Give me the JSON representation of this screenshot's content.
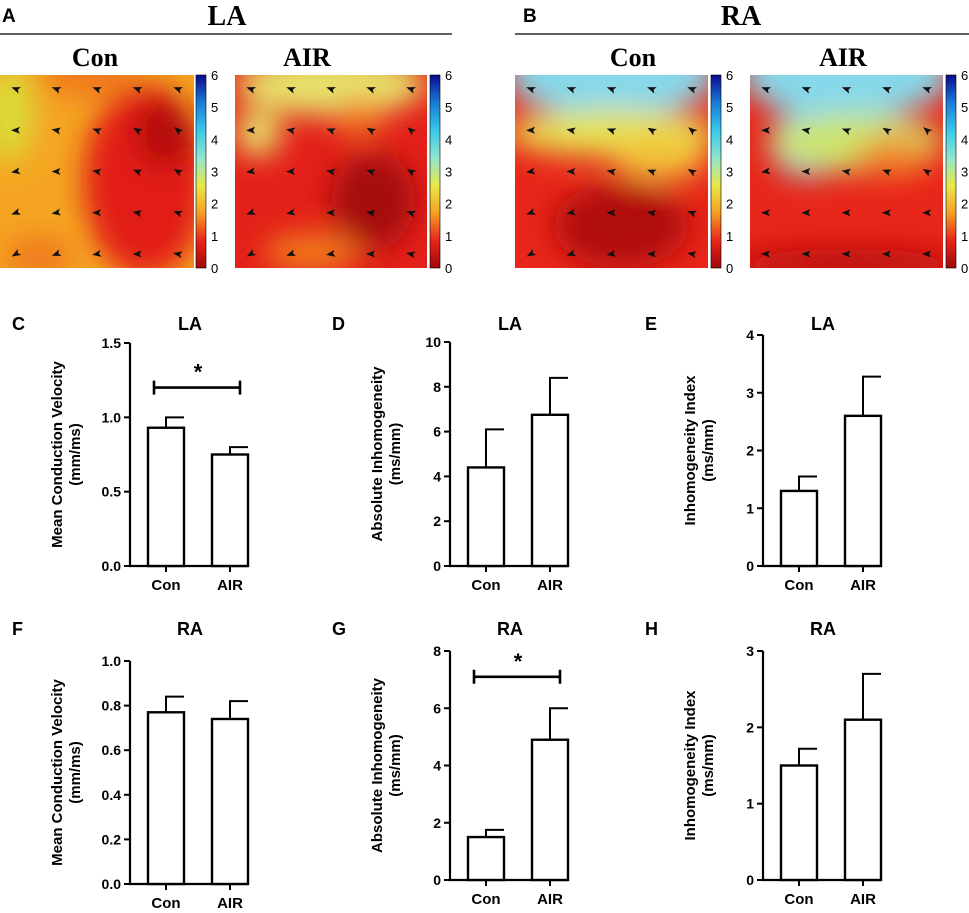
{
  "top": {
    "panel_A": {
      "letter": "A",
      "title": "LA",
      "maps": [
        {
          "label": "Con",
          "colors": {
            "bg": "#f5a522",
            "mid": "#f07a1c",
            "hot": "#e21a12",
            "core": "#b30d0d",
            "cool": "#d9dd3a",
            "cyan": "#8fe0d0"
          }
        },
        {
          "label": "AIR",
          "colors": {
            "bg": "#e3201a",
            "mid": "#f07a1c",
            "hot": "#d9dd3a",
            "core": "#a50d0d",
            "cool": "#e6e26a",
            "cyan": "#8fe0d0"
          }
        }
      ]
    },
    "panel_B": {
      "letter": "B",
      "title": "RA",
      "maps": [
        {
          "label": "Con",
          "colors": {
            "bg": "#e8261a",
            "mid": "#f07a1c",
            "hot": "#f2c43a",
            "core": "#b00d0d",
            "cool": "#e6e250",
            "cyan": "#86d8ea"
          }
        },
        {
          "label": "AIR",
          "colors": {
            "bg": "#e8261a",
            "mid": "#f08a2a",
            "hot": "#e8e04a",
            "core": "#b80f0f",
            "cool": "#cce46a",
            "cyan": "#86d8ea"
          }
        }
      ]
    },
    "colorbar": {
      "ticks": [
        "6",
        "5",
        "4",
        "3",
        "2",
        "1",
        "0"
      ],
      "stops": [
        "#0a0a8c",
        "#1a7ad8",
        "#38c8e8",
        "#8fe6cf",
        "#e8e84a",
        "#f5a022",
        "#e8261a",
        "#a00808"
      ]
    }
  },
  "chart_data": [
    {
      "id": "C",
      "type": "bar",
      "title": "LA",
      "ylabel_line1": "Mean Conduction Velocity",
      "ylabel_line2": "(mm/ms)",
      "categories": [
        "Con",
        "AIR"
      ],
      "values": [
        0.93,
        0.75
      ],
      "errors": [
        0.07,
        0.05
      ],
      "ylim": [
        0,
        1.5
      ],
      "yticks": [
        "0.0",
        "0.5",
        "1.0",
        "1.5"
      ],
      "significance": "*"
    },
    {
      "id": "D",
      "type": "bar",
      "title": "LA",
      "ylabel_line1": "Absolute Inhomogeneity",
      "ylabel_line2": "(ms/mm)",
      "categories": [
        "Con",
        "AIR"
      ],
      "values": [
        4.4,
        6.75
      ],
      "errors": [
        1.7,
        1.65
      ],
      "ylim": [
        0,
        10
      ],
      "yticks": [
        "0",
        "2",
        "4",
        "6",
        "8",
        "10"
      ],
      "significance": null
    },
    {
      "id": "E",
      "type": "bar",
      "title": "LA",
      "ylabel_line1": "Inhomogeneity Index",
      "ylabel_line2": "(ms/mm)",
      "categories": [
        "Con",
        "AIR"
      ],
      "values": [
        1.3,
        2.6
      ],
      "errors": [
        0.25,
        0.68
      ],
      "ylim": [
        0,
        4
      ],
      "yticks": [
        "0",
        "1",
        "2",
        "3",
        "4"
      ],
      "significance": null
    },
    {
      "id": "F",
      "type": "bar",
      "title": "RA",
      "ylabel_line1": "Mean Conduction Velocity",
      "ylabel_line2": "(mm/ms)",
      "categories": [
        "Con",
        "AIR"
      ],
      "values": [
        0.77,
        0.74
      ],
      "errors": [
        0.07,
        0.08
      ],
      "ylim": [
        0,
        1.0
      ],
      "yticks": [
        "0.0",
        "0.2",
        "0.4",
        "0.6",
        "0.8",
        "1.0"
      ],
      "significance": null
    },
    {
      "id": "G",
      "type": "bar",
      "title": "RA",
      "ylabel_line1": "Absolute Inhomogeneity",
      "ylabel_line2": "(ms/mm)",
      "categories": [
        "Con",
        "AIR"
      ],
      "values": [
        1.5,
        4.9
      ],
      "errors": [
        0.25,
        1.1
      ],
      "ylim": [
        0,
        8
      ],
      "yticks": [
        "0",
        "2",
        "4",
        "6",
        "8"
      ],
      "significance": "*"
    },
    {
      "id": "H",
      "type": "bar",
      "title": "RA",
      "ylabel_line1": "Inhomogeneity Index",
      "ylabel_line2": "(ms/mm)",
      "categories": [
        "Con",
        "AIR"
      ],
      "values": [
        1.5,
        2.1
      ],
      "errors": [
        0.22,
        0.6
      ],
      "ylim": [
        0,
        3
      ],
      "yticks": [
        "0",
        "1",
        "2",
        "3"
      ],
      "significance": null
    }
  ]
}
